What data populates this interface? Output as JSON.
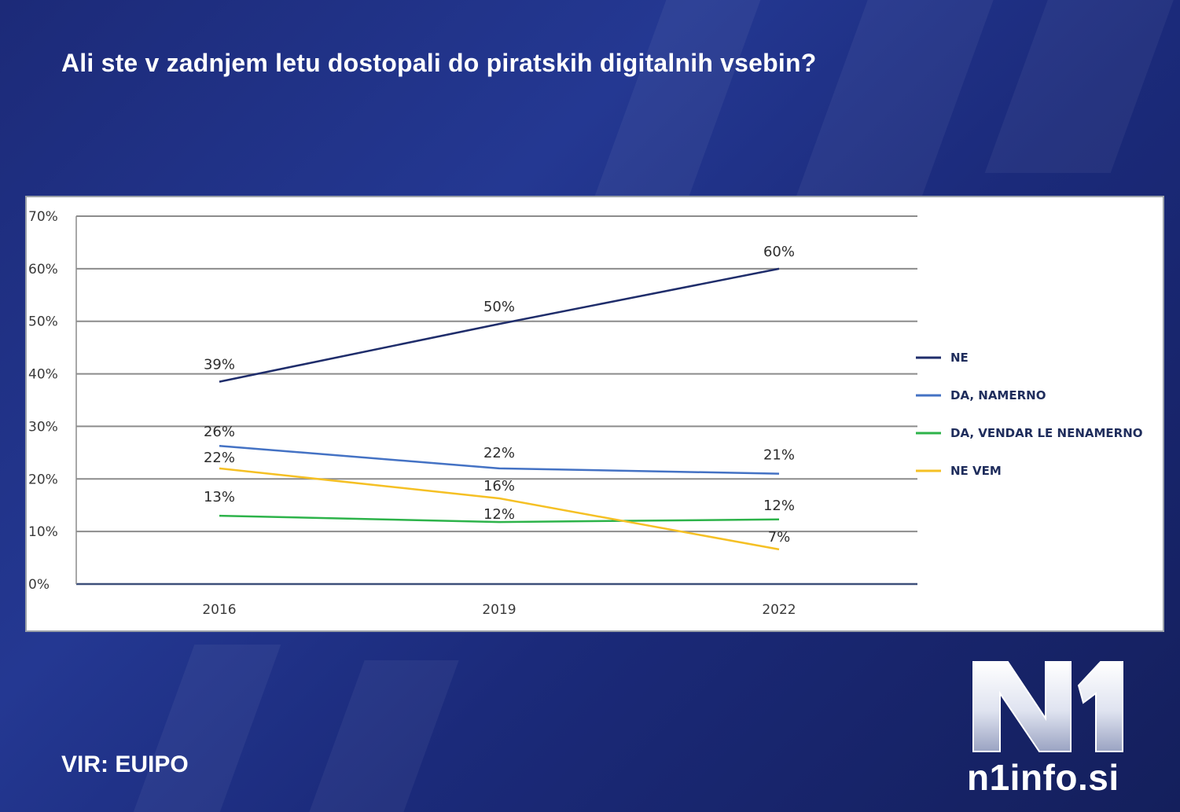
{
  "title": "Ali ste v zadnjem letu dostopali do piratskih digitalnih vsebin?",
  "source": "VIR: EUIPO",
  "logo": {
    "mark": "N1",
    "site": "n1info.si"
  },
  "colors": {
    "background": "#1f2f84",
    "NE": "#1f2d6b",
    "DA, NAMERNO": "#4472c4",
    "DA, VENDAR LE NENAMERNO": "#2db34a",
    "NE VEM": "#f5c024"
  },
  "chart_data": {
    "type": "line",
    "title": "Ali ste v zadnjem letu dostopali do piratskih digitalnih vsebin?",
    "categories": [
      "2016",
      "2019",
      "2022"
    ],
    "ylim": [
      0,
      70
    ],
    "yticks": [
      "0%",
      "10%",
      "20%",
      "30%",
      "40%",
      "50%",
      "60%",
      "70%"
    ],
    "grid": true,
    "legend_position": "right",
    "series": [
      {
        "name": "NE",
        "values": [
          38.5,
          49.5,
          60
        ],
        "labels": [
          "39%",
          "50%",
          "60%"
        ]
      },
      {
        "name": "DA, NAMERNO",
        "values": [
          26.3,
          22,
          21
        ],
        "labels": [
          "26%",
          "22%",
          "21%"
        ]
      },
      {
        "name": "DA, VENDAR LE NENAMERNO",
        "values": [
          13,
          11.8,
          12.3
        ],
        "labels": [
          "13%",
          "12%",
          "12%"
        ]
      },
      {
        "name": "NE VEM",
        "values": [
          22,
          16.3,
          6.6
        ],
        "labels": [
          "22%",
          "16%",
          "7%"
        ]
      }
    ]
  }
}
